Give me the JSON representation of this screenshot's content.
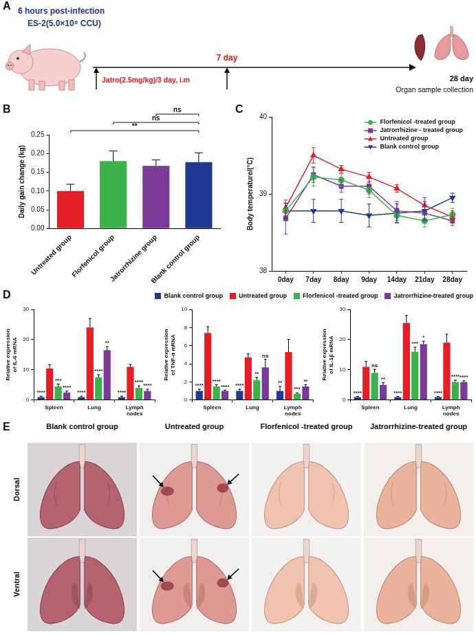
{
  "diagram": {
    "panel": "A",
    "infection_time": "6 hours post-infection",
    "challenge": "ES-2(5.0×10⁸ CCU)",
    "treatment_day": "7 day",
    "treatment": "Jatro(2.5mg/kg)/3 day, i.m",
    "end_day": "28 day",
    "end_event": "Organ sample collection"
  },
  "chart_data": [
    {
      "panel": "B",
      "type": "bar",
      "categories": [
        "Untreated group",
        "Florfenicol group",
        "Jatrorrhizine group",
        "Blank control group"
      ],
      "values": [
        0.1,
        0.18,
        0.167,
        0.177
      ],
      "errors": [
        0.018,
        0.027,
        0.016,
        0.025
      ],
      "colors": [
        "#e41e26",
        "#3cb34a",
        "#7a3b98",
        "#1f3a93"
      ],
      "y_label": "Daily gain change (kg)",
      "ylim": [
        0,
        0.25
      ],
      "yticks": [
        {
          "value": 0,
          "label": "0.00"
        },
        {
          "value": 0.05,
          "label": "0.05"
        },
        {
          "value": 0.1,
          "label": "0.10"
        },
        {
          "value": 0.15,
          "label": "0.15"
        },
        {
          "value": 0.2,
          "label": "0.20"
        },
        {
          "value": 0.25,
          "label": "0.25"
        }
      ],
      "grid": false,
      "comparisons": [
        {
          "from": "Untreated group",
          "to": "Blank control group",
          "label": "**"
        },
        {
          "from": "Florfenicol group",
          "to": "Blank control group",
          "label": "ns"
        },
        {
          "from": "Jatrorrhizine group",
          "to": "Blank control group",
          "label": "ns"
        }
      ]
    },
    {
      "panel": "C",
      "type": "line",
      "categories": [
        "0day",
        "7day",
        "8day",
        "9day",
        "14day",
        "21day",
        "28day"
      ],
      "y_label": "Body temperature/(°C)",
      "ylim": [
        38,
        40
      ],
      "yticks": [
        38,
        39,
        40
      ],
      "grid": false,
      "legend": "top-right",
      "series": [
        {
          "name": "Florfenicol -treated group",
          "color": "#3cb34a",
          "marker": "circle",
          "values": [
            38.78,
            39.22,
            39.18,
            39.05,
            38.72,
            38.65,
            38.73
          ],
          "errors": [
            0.1,
            0.12,
            0.08,
            0.1,
            0.1,
            0.08,
            0.08
          ]
        },
        {
          "name": "Jatrorrhizine - treated group",
          "color": "#7a3b98",
          "marker": "square",
          "values": [
            38.68,
            39.25,
            39.1,
            39.1,
            38.78,
            38.75,
            38.65
          ],
          "errors": [
            0.2,
            0.1,
            0.08,
            0.1,
            0.12,
            0.1,
            0.06
          ]
        },
        {
          "name": "Untreated group",
          "color": "#e41e26",
          "marker": "triangle-up",
          "values": [
            38.82,
            39.5,
            39.32,
            39.22,
            39.07,
            38.85,
            38.7
          ],
          "errors": [
            0.1,
            0.1,
            0.05,
            0.06,
            0.05,
            0.1,
            0.08
          ]
        },
        {
          "name": "Blank control group",
          "color": "#1f3a93",
          "marker": "triangle-down",
          "values": [
            38.78,
            38.78,
            38.78,
            38.72,
            38.75,
            38.78,
            38.95
          ],
          "errors": [
            0.1,
            0.15,
            0.15,
            0.15,
            0.12,
            0.12,
            0.06
          ]
        }
      ]
    },
    {
      "panel": "D",
      "type": "bar",
      "legend": "top",
      "grid": false,
      "categories": [
        "Spleen",
        "Lung",
        "Lymph nodes"
      ],
      "series": [
        {
          "name": "Blank control group",
          "color": "#1f3a93"
        },
        {
          "name": "Untreated group",
          "color": "#e41e26"
        },
        {
          "name": "Florfenicol -treated group",
          "color": "#3cb34a"
        },
        {
          "name": "Jatrorrhizine-treated group",
          "color": "#7a3b98"
        }
      ],
      "subplots": [
        {
          "y_label": "Relative expression of IL-6 mRNA",
          "ylim": [
            0,
            30
          ],
          "yticks": [
            0,
            10,
            20,
            30
          ],
          "series": [
            {
              "values": [
                1,
                1,
                1
              ],
              "errors": [
                0.3,
                0.3,
                0.3
              ],
              "significance": [
                "****",
                "****",
                "****"
              ]
            },
            {
              "values": [
                10.5,
                24,
                11
              ],
              "errors": [
                1.2,
                3,
                0.8
              ]
            },
            {
              "values": [
                4.5,
                7.5,
                4
              ],
              "errors": [
                0.8,
                0.9,
                0.7
              ],
              "significance": [
                "***",
                "****",
                "****"
              ]
            },
            {
              "values": [
                2.5,
                16.5,
                3
              ],
              "errors": [
                0.5,
                1.2,
                0.6
              ],
              "significance": [
                "****",
                "**",
                "****"
              ]
            }
          ]
        },
        {
          "y_label": "Relative expression of TNF-α mRNA",
          "ylim": [
            0,
            10
          ],
          "yticks": [
            0,
            2,
            4,
            6,
            8,
            10
          ],
          "series": [
            {
              "values": [
                1,
                1,
                1
              ],
              "errors": [
                0.2,
                0.2,
                0.5
              ],
              "significance": [
                "****",
                "****",
                "**"
              ]
            },
            {
              "values": [
                7.4,
                4.7,
                5.3
              ],
              "errors": [
                0.7,
                0.4,
                1.4
              ]
            },
            {
              "values": [
                1.5,
                2.2,
                0.7
              ],
              "errors": [
                0.2,
                0.3,
                0.1
              ],
              "significance": [
                "****",
                "**",
                "***"
              ]
            },
            {
              "values": [
                1.0,
                3.6,
                1.5
              ],
              "errors": [
                0.1,
                0.9,
                0.2
              ],
              "significance": [
                "****",
                "ns",
                "**"
              ]
            }
          ]
        },
        {
          "y_label": "Relative expression of IL-1β mRNA",
          "ylim": [
            0,
            30
          ],
          "yticks": [
            0,
            10,
            20,
            30
          ],
          "series": [
            {
              "values": [
                1,
                1,
                1
              ],
              "errors": [
                0.2,
                0.2,
                0.2
              ],
              "significance": [
                "****",
                "****",
                "****"
              ]
            },
            {
              "values": [
                11,
                25.5,
                19
              ],
              "errors": [
                1.8,
                2.5,
                2.8
              ]
            },
            {
              "values": [
                9,
                16,
                6
              ],
              "errors": [
                1.2,
                1.5,
                0.6
              ],
              "significance": [
                "ns",
                "***",
                "****"
              ]
            },
            {
              "values": [
                5,
                18.5,
                6
              ],
              "errors": [
                0.8,
                1,
                0.4
              ],
              "significance": [
                "**",
                "*",
                "****"
              ]
            }
          ]
        }
      ]
    }
  ],
  "photos": {
    "panel": "E",
    "columns": [
      "Blank control group",
      "Untreated group",
      "Florfenicol -treated group",
      "Jatrorrhizine-treated group"
    ],
    "rows": [
      "Dorsal",
      "Ventral"
    ]
  }
}
